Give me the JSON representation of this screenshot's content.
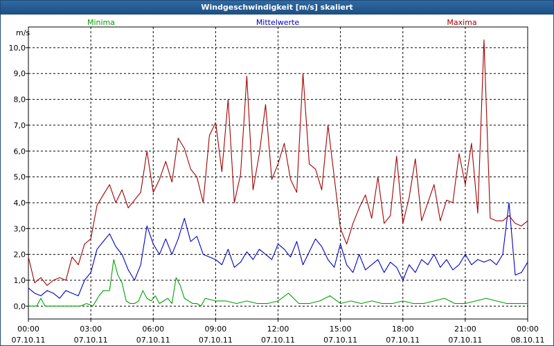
{
  "window": {
    "title": "Windgeschwindigkeit [m/s] skaliert"
  },
  "chart_data": {
    "type": "line",
    "title": "Windgeschwindigkeit [m/s] skaliert",
    "ylabel": "m/s",
    "xlabel": "",
    "ylim": [
      -0.5,
      10.8
    ],
    "xlim": [
      0,
      24
    ],
    "y_ticks": [
      0,
      1,
      2,
      3,
      4,
      5,
      6,
      7,
      8,
      9,
      10
    ],
    "y_tick_labels": [
      "0,0",
      "1,0",
      "2,0",
      "3,0",
      "4,0",
      "5,0",
      "6,0",
      "7,0",
      "8,0",
      "9,0",
      "10,0"
    ],
    "x_ticks": [
      0,
      3,
      6,
      9,
      12,
      15,
      18,
      21,
      24
    ],
    "x_tick_labels": [
      {
        "time": "00:00",
        "date": "07.10.11"
      },
      {
        "time": "03:00",
        "date": "07.10.11"
      },
      {
        "time": "06:00",
        "date": "07.10.11"
      },
      {
        "time": "09:00",
        "date": "07.10.11"
      },
      {
        "time": "12:00",
        "date": "07.10.11"
      },
      {
        "time": "15:00",
        "date": "07.10.11"
      },
      {
        "time": "18:00",
        "date": "07.10.11"
      },
      {
        "time": "21:00",
        "date": "07.10.11"
      },
      {
        "time": "00:00",
        "date": "08.10.11"
      }
    ],
    "grid": true,
    "legend_position": "top",
    "series": [
      {
        "name": "Minima",
        "color": "#00a000",
        "x": [
          0,
          0.4,
          0.6,
          0.8,
          1.0,
          1.5,
          2.0,
          2.5,
          2.8,
          3.1,
          3.4,
          3.6,
          3.9,
          4.1,
          4.3,
          4.5,
          4.7,
          4.9,
          5.1,
          5.3,
          5.5,
          5.7,
          5.9,
          6.1,
          6.3,
          6.5,
          6.7,
          6.9,
          7.1,
          7.3,
          7.5,
          7.7,
          7.9,
          8.1,
          8.3,
          8.5,
          9.0,
          9.5,
          10.0,
          10.5,
          11.0,
          11.5,
          12.0,
          12.5,
          13.0,
          13.5,
          14.0,
          14.5,
          15.0,
          15.5,
          16.0,
          16.5,
          17.0,
          17.5,
          18.0,
          18.5,
          19.0,
          19.5,
          20.0,
          20.5,
          21.0,
          21.5,
          22.0,
          22.5,
          23.0,
          23.5,
          24.0
        ],
        "values": [
          0.0,
          0.0,
          0.3,
          0.0,
          0.0,
          0.0,
          0.0,
          0.0,
          0.1,
          0.0,
          0.4,
          0.6,
          0.6,
          1.8,
          1.2,
          0.9,
          0.2,
          0.1,
          0.1,
          0.2,
          0.6,
          0.3,
          0.2,
          0.4,
          0.1,
          0.2,
          0.3,
          0.1,
          1.1,
          0.8,
          0.3,
          0.2,
          0.1,
          0.1,
          0.0,
          0.3,
          0.2,
          0.2,
          0.1,
          0.2,
          0.1,
          0.1,
          0.2,
          0.5,
          0.1,
          0.1,
          0.2,
          0.4,
          0.1,
          0.2,
          0.1,
          0.2,
          0.1,
          0.1,
          0.2,
          0.1,
          0.1,
          0.2,
          0.3,
          0.1,
          0.1,
          0.2,
          0.3,
          0.2,
          0.1,
          0.1,
          0.1
        ]
      },
      {
        "name": "Mittelwerte",
        "color": "#0000c0",
        "x": [
          0,
          0.3,
          0.6,
          0.9,
          1.2,
          1.5,
          1.8,
          2.1,
          2.4,
          2.7,
          3.0,
          3.3,
          3.6,
          3.9,
          4.2,
          4.5,
          4.8,
          5.1,
          5.4,
          5.7,
          6.0,
          6.3,
          6.6,
          6.9,
          7.2,
          7.5,
          7.8,
          8.1,
          8.4,
          8.7,
          9.0,
          9.3,
          9.6,
          9.9,
          10.2,
          10.5,
          10.8,
          11.1,
          11.4,
          11.7,
          12.0,
          12.3,
          12.6,
          12.9,
          13.2,
          13.5,
          13.8,
          14.1,
          14.4,
          14.7,
          15.0,
          15.3,
          15.6,
          15.9,
          16.2,
          16.5,
          16.8,
          17.1,
          17.4,
          17.7,
          18.0,
          18.3,
          18.6,
          18.9,
          19.2,
          19.5,
          19.8,
          20.1,
          20.4,
          20.7,
          21.0,
          21.3,
          21.6,
          21.9,
          22.2,
          22.5,
          22.8,
          23.1,
          23.4,
          23.7,
          24.0
        ],
        "values": [
          0.7,
          0.5,
          0.4,
          0.6,
          0.5,
          0.3,
          0.6,
          0.5,
          0.4,
          1.0,
          1.3,
          2.2,
          2.5,
          2.8,
          2.3,
          2.0,
          1.4,
          1.0,
          1.6,
          3.1,
          2.4,
          2.0,
          2.6,
          2.0,
          2.6,
          3.4,
          2.5,
          2.7,
          2.0,
          1.9,
          1.8,
          1.6,
          2.2,
          1.5,
          1.7,
          2.1,
          1.8,
          2.2,
          2.0,
          1.8,
          2.4,
          2.2,
          1.9,
          2.5,
          1.6,
          2.1,
          2.6,
          2.3,
          1.8,
          1.5,
          2.4,
          1.6,
          1.3,
          2.0,
          1.4,
          1.6,
          1.8,
          1.3,
          1.7,
          1.5,
          1.0,
          1.6,
          1.3,
          1.8,
          1.6,
          2.0,
          1.5,
          1.8,
          1.4,
          1.6,
          2.0,
          1.6,
          1.8,
          1.7,
          1.8,
          1.6,
          2.0,
          4.0,
          1.2,
          1.3,
          1.7
        ]
      },
      {
        "name": "Maxima",
        "color": "#a00000",
        "x": [
          0,
          0.3,
          0.6,
          0.9,
          1.2,
          1.5,
          1.8,
          2.1,
          2.4,
          2.7,
          3.0,
          3.3,
          3.6,
          3.9,
          4.2,
          4.5,
          4.8,
          5.1,
          5.4,
          5.7,
          6.0,
          6.3,
          6.6,
          6.9,
          7.2,
          7.5,
          7.8,
          8.1,
          8.4,
          8.7,
          9.0,
          9.3,
          9.6,
          9.9,
          10.2,
          10.5,
          10.8,
          11.1,
          11.4,
          11.7,
          12.0,
          12.3,
          12.6,
          12.9,
          13.2,
          13.5,
          13.8,
          14.1,
          14.4,
          14.7,
          15.0,
          15.3,
          15.6,
          15.9,
          16.2,
          16.5,
          16.8,
          17.1,
          17.4,
          17.7,
          18.0,
          18.3,
          18.6,
          18.9,
          19.2,
          19.5,
          19.8,
          20.1,
          20.4,
          20.7,
          21.0,
          21.3,
          21.6,
          21.9,
          22.2,
          22.5,
          22.8,
          23.1,
          23.4,
          23.7,
          24.0
        ],
        "values": [
          1.9,
          0.9,
          1.1,
          0.8,
          1.0,
          1.1,
          1.0,
          1.9,
          1.6,
          2.4,
          2.6,
          3.9,
          4.3,
          4.7,
          4.0,
          4.5,
          3.8,
          4.1,
          4.4,
          6.0,
          4.4,
          4.9,
          5.6,
          4.8,
          6.5,
          6.1,
          5.3,
          5.0,
          4.0,
          6.6,
          7.1,
          5.2,
          8.0,
          4.0,
          5.1,
          8.9,
          4.5,
          5.9,
          7.8,
          4.9,
          5.5,
          6.3,
          4.9,
          4.4,
          9.0,
          5.5,
          5.3,
          4.5,
          7.0,
          5.0,
          3.0,
          2.4,
          3.2,
          3.8,
          4.3,
          3.4,
          5.0,
          3.2,
          3.5,
          5.8,
          3.2,
          4.2,
          5.7,
          3.3,
          4.0,
          4.7,
          3.3,
          4.1,
          4.0,
          5.9,
          4.7,
          6.3,
          3.6,
          10.3,
          3.4,
          3.3,
          3.3,
          3.5,
          3.2,
          3.1,
          3.3
        ]
      }
    ]
  }
}
